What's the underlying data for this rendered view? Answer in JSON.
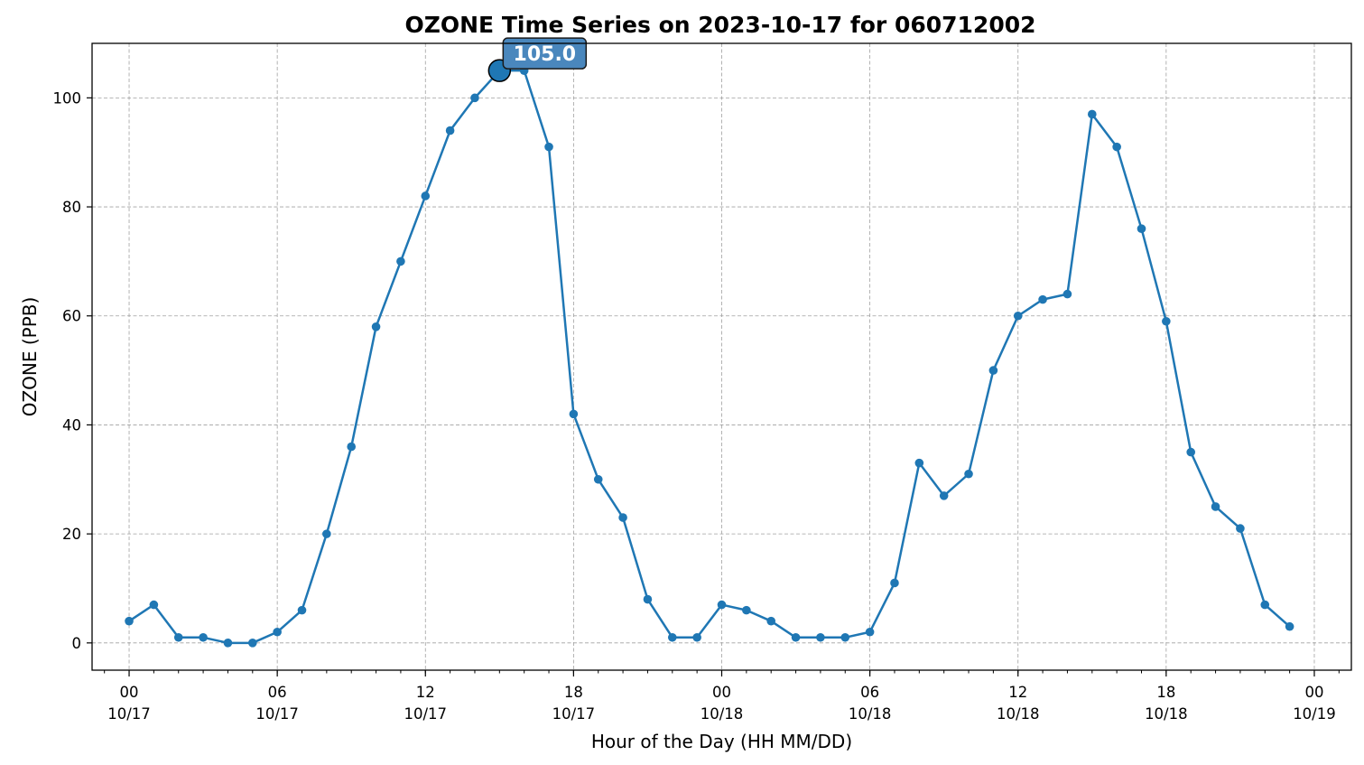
{
  "chart_data": {
    "type": "line",
    "title": "OZONE Time Series on 2023-10-17 for 060712002",
    "xlabel": "Hour of the Day (HH MM/DD)",
    "ylabel": "OZONE (PPB)",
    "x_range": [
      "2023-10-16T22:30",
      "2023-10-19T01:30"
    ],
    "ylim": [
      -5,
      110
    ],
    "grid": true,
    "line_color": "#1f77b4",
    "x_ticks": [
      {
        "time": "2023-10-17T00:00",
        "hh": "00",
        "date": "10/17"
      },
      {
        "time": "2023-10-17T06:00",
        "hh": "06",
        "date": "10/17"
      },
      {
        "time": "2023-10-17T12:00",
        "hh": "12",
        "date": "10/17"
      },
      {
        "time": "2023-10-17T18:00",
        "hh": "18",
        "date": "10/17"
      },
      {
        "time": "2023-10-18T00:00",
        "hh": "00",
        "date": "10/18"
      },
      {
        "time": "2023-10-18T06:00",
        "hh": "06",
        "date": "10/18"
      },
      {
        "time": "2023-10-18T12:00",
        "hh": "12",
        "date": "10/18"
      },
      {
        "time": "2023-10-18T18:00",
        "hh": "18",
        "date": "10/18"
      },
      {
        "time": "2023-10-19T00:00",
        "hh": "00",
        "date": "10/19"
      }
    ],
    "y_ticks": [
      0,
      20,
      40,
      60,
      80,
      100
    ],
    "series": [
      {
        "x": [
          "2023-10-17T00:00",
          "2023-10-17T01:00",
          "2023-10-17T02:00",
          "2023-10-17T03:00",
          "2023-10-17T04:00",
          "2023-10-17T05:00",
          "2023-10-17T06:00",
          "2023-10-17T07:00",
          "2023-10-17T08:00",
          "2023-10-17T09:00",
          "2023-10-17T10:00",
          "2023-10-17T11:00",
          "2023-10-17T12:00",
          "2023-10-17T13:00",
          "2023-10-17T14:00",
          "2023-10-17T15:00",
          "2023-10-17T16:00",
          "2023-10-17T17:00",
          "2023-10-17T18:00",
          "2023-10-17T19:00",
          "2023-10-17T20:00",
          "2023-10-17T21:00",
          "2023-10-17T22:00",
          "2023-10-17T23:00",
          "2023-10-18T00:00",
          "2023-10-18T01:00",
          "2023-10-18T02:00",
          "2023-10-18T03:00",
          "2023-10-18T04:00",
          "2023-10-18T05:00",
          "2023-10-18T06:00",
          "2023-10-18T07:00",
          "2023-10-18T08:00",
          "2023-10-18T09:00",
          "2023-10-18T10:00",
          "2023-10-18T11:00",
          "2023-10-18T12:00",
          "2023-10-18T13:00",
          "2023-10-18T14:00",
          "2023-10-18T15:00",
          "2023-10-18T16:00",
          "2023-10-18T17:00",
          "2023-10-18T18:00",
          "2023-10-18T19:00",
          "2023-10-18T20:00",
          "2023-10-18T21:00",
          "2023-10-18T22:00",
          "2023-10-18T23:00"
        ],
        "y": [
          4,
          7,
          1,
          1,
          0,
          0,
          2,
          6,
          20,
          36,
          58,
          70,
          82,
          94,
          100,
          105,
          105,
          91,
          42,
          30,
          23,
          8,
          1,
          1,
          7,
          6,
          4,
          1,
          1,
          1,
          2,
          11,
          33,
          27,
          31,
          50,
          60,
          63,
          64,
          97,
          91,
          76,
          59,
          35,
          25,
          21,
          7,
          3
        ]
      }
    ],
    "annotation": {
      "time": "2023-10-17T15:00",
      "value": 105.0,
      "text": "105.0"
    }
  }
}
